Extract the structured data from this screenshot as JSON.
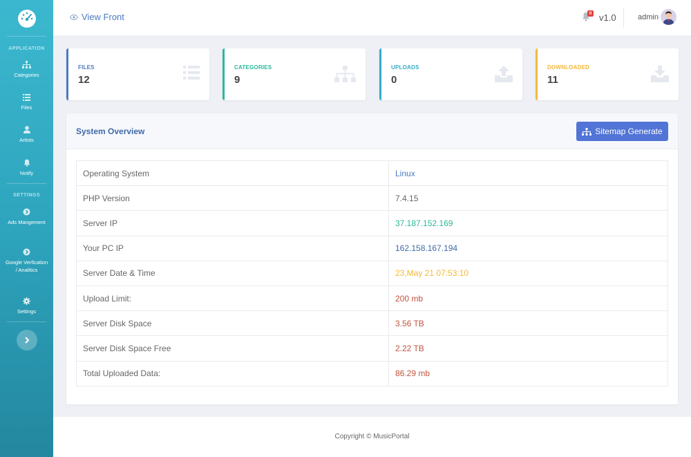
{
  "sidebar": {
    "heading_application": "APPLICATION",
    "heading_settings": "SETTINGS",
    "items": [
      {
        "label": "Categories",
        "icon": "sitemap-icon"
      },
      {
        "label": "Files",
        "icon": "list-icon"
      },
      {
        "label": "Artists",
        "icon": "user-icon"
      },
      {
        "label": "Notify",
        "icon": "bell-icon"
      },
      {
        "label": "Ads Mangement",
        "icon": "circle-arrow-icon"
      },
      {
        "label": "Google Verfication / Analitics",
        "icon": "circle-arrow-icon"
      },
      {
        "label": "Settings",
        "icon": "gear-icon"
      }
    ]
  },
  "header": {
    "view_front": "View Front",
    "notification_count": "0",
    "version": "v1.0",
    "user": "admin"
  },
  "cards": [
    {
      "label": "FILES",
      "value": "12",
      "color": "#4a79c0",
      "icon": "list-icon"
    },
    {
      "label": "CATEGORIES",
      "value": "9",
      "color": "#2bb89a",
      "icon": "sitemap-icon"
    },
    {
      "label": "UPLOADS",
      "value": "0",
      "color": "#35aac9",
      "icon": "upload-icon"
    },
    {
      "label": "DOWNLOADED",
      "value": "11",
      "color": "#f2b93b",
      "icon": "download-icon"
    }
  ],
  "panel": {
    "title": "System Overview",
    "button": "Sitemap Generate",
    "rows": [
      {
        "key": "Operating System",
        "value": "Linux",
        "color": "#4a79c0"
      },
      {
        "key": "PHP Version",
        "value": "7.4.15",
        "color": "#666666"
      },
      {
        "key": "Server IP",
        "value": "37.187.152.169",
        "color": "#2bb89a"
      },
      {
        "key": "Your PC IP",
        "value": "162.158.167.194",
        "color": "#3f6aa8"
      },
      {
        "key": "Server Date & Time",
        "value": "23,May 21 07:53:10",
        "color": "#f2b93b"
      },
      {
        "key": "Upload Limit:",
        "value": "200 mb",
        "color": "#c0533f"
      },
      {
        "key": "Server Disk Space",
        "value": "3.56 TB",
        "color": "#c0533f"
      },
      {
        "key": "Server Disk Space Free",
        "value": "2.22 TB",
        "color": "#c0533f"
      },
      {
        "key": "Total Uploaded Data:",
        "value": "86.29 mb",
        "color": "#c0533f"
      }
    ]
  },
  "footer": {
    "copyright": "Copyright © MusicPortal"
  }
}
